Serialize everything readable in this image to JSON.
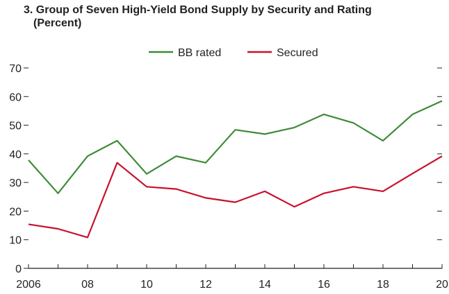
{
  "chart_data": {
    "type": "line",
    "title": "3. Group of Seven High-Yield Bond Supply by Security and Rating",
    "subtitle": "(Percent)",
    "x": [
      2006,
      2007,
      2008,
      2009,
      2010,
      2011,
      2012,
      2013,
      2014,
      2015,
      2016,
      2017,
      2018,
      2019,
      2020
    ],
    "x_tick_values": [
      2006,
      2008,
      2010,
      2012,
      2014,
      2016,
      2018,
      2020
    ],
    "x_tick_labels": [
      "2006",
      "08",
      "10",
      "12",
      "14",
      "16",
      "18",
      "20"
    ],
    "y_ticks": [
      0,
      10,
      20,
      30,
      40,
      50,
      60,
      70
    ],
    "y_tick_labels": [
      "0",
      "10",
      "20",
      "30",
      "40",
      "50",
      "60",
      "70"
    ],
    "xlim": [
      2006,
      2020
    ],
    "ylim": [
      0,
      70
    ],
    "grid": false,
    "legend_position": "top-center",
    "series": [
      {
        "name": "BB rated",
        "color": "#3d8b37",
        "values": [
          37.8,
          26.2,
          39.2,
          44.6,
          33.0,
          39.2,
          36.9,
          48.4,
          46.9,
          49.2,
          53.8,
          50.8,
          44.6,
          53.8,
          58.5
        ]
      },
      {
        "name": "Secured",
        "color": "#c8102e",
        "values": [
          15.4,
          13.8,
          10.8,
          36.9,
          28.5,
          27.7,
          24.6,
          23.1,
          26.9,
          21.5,
          26.2,
          28.5,
          26.9,
          33.1,
          39.2
        ]
      }
    ]
  }
}
